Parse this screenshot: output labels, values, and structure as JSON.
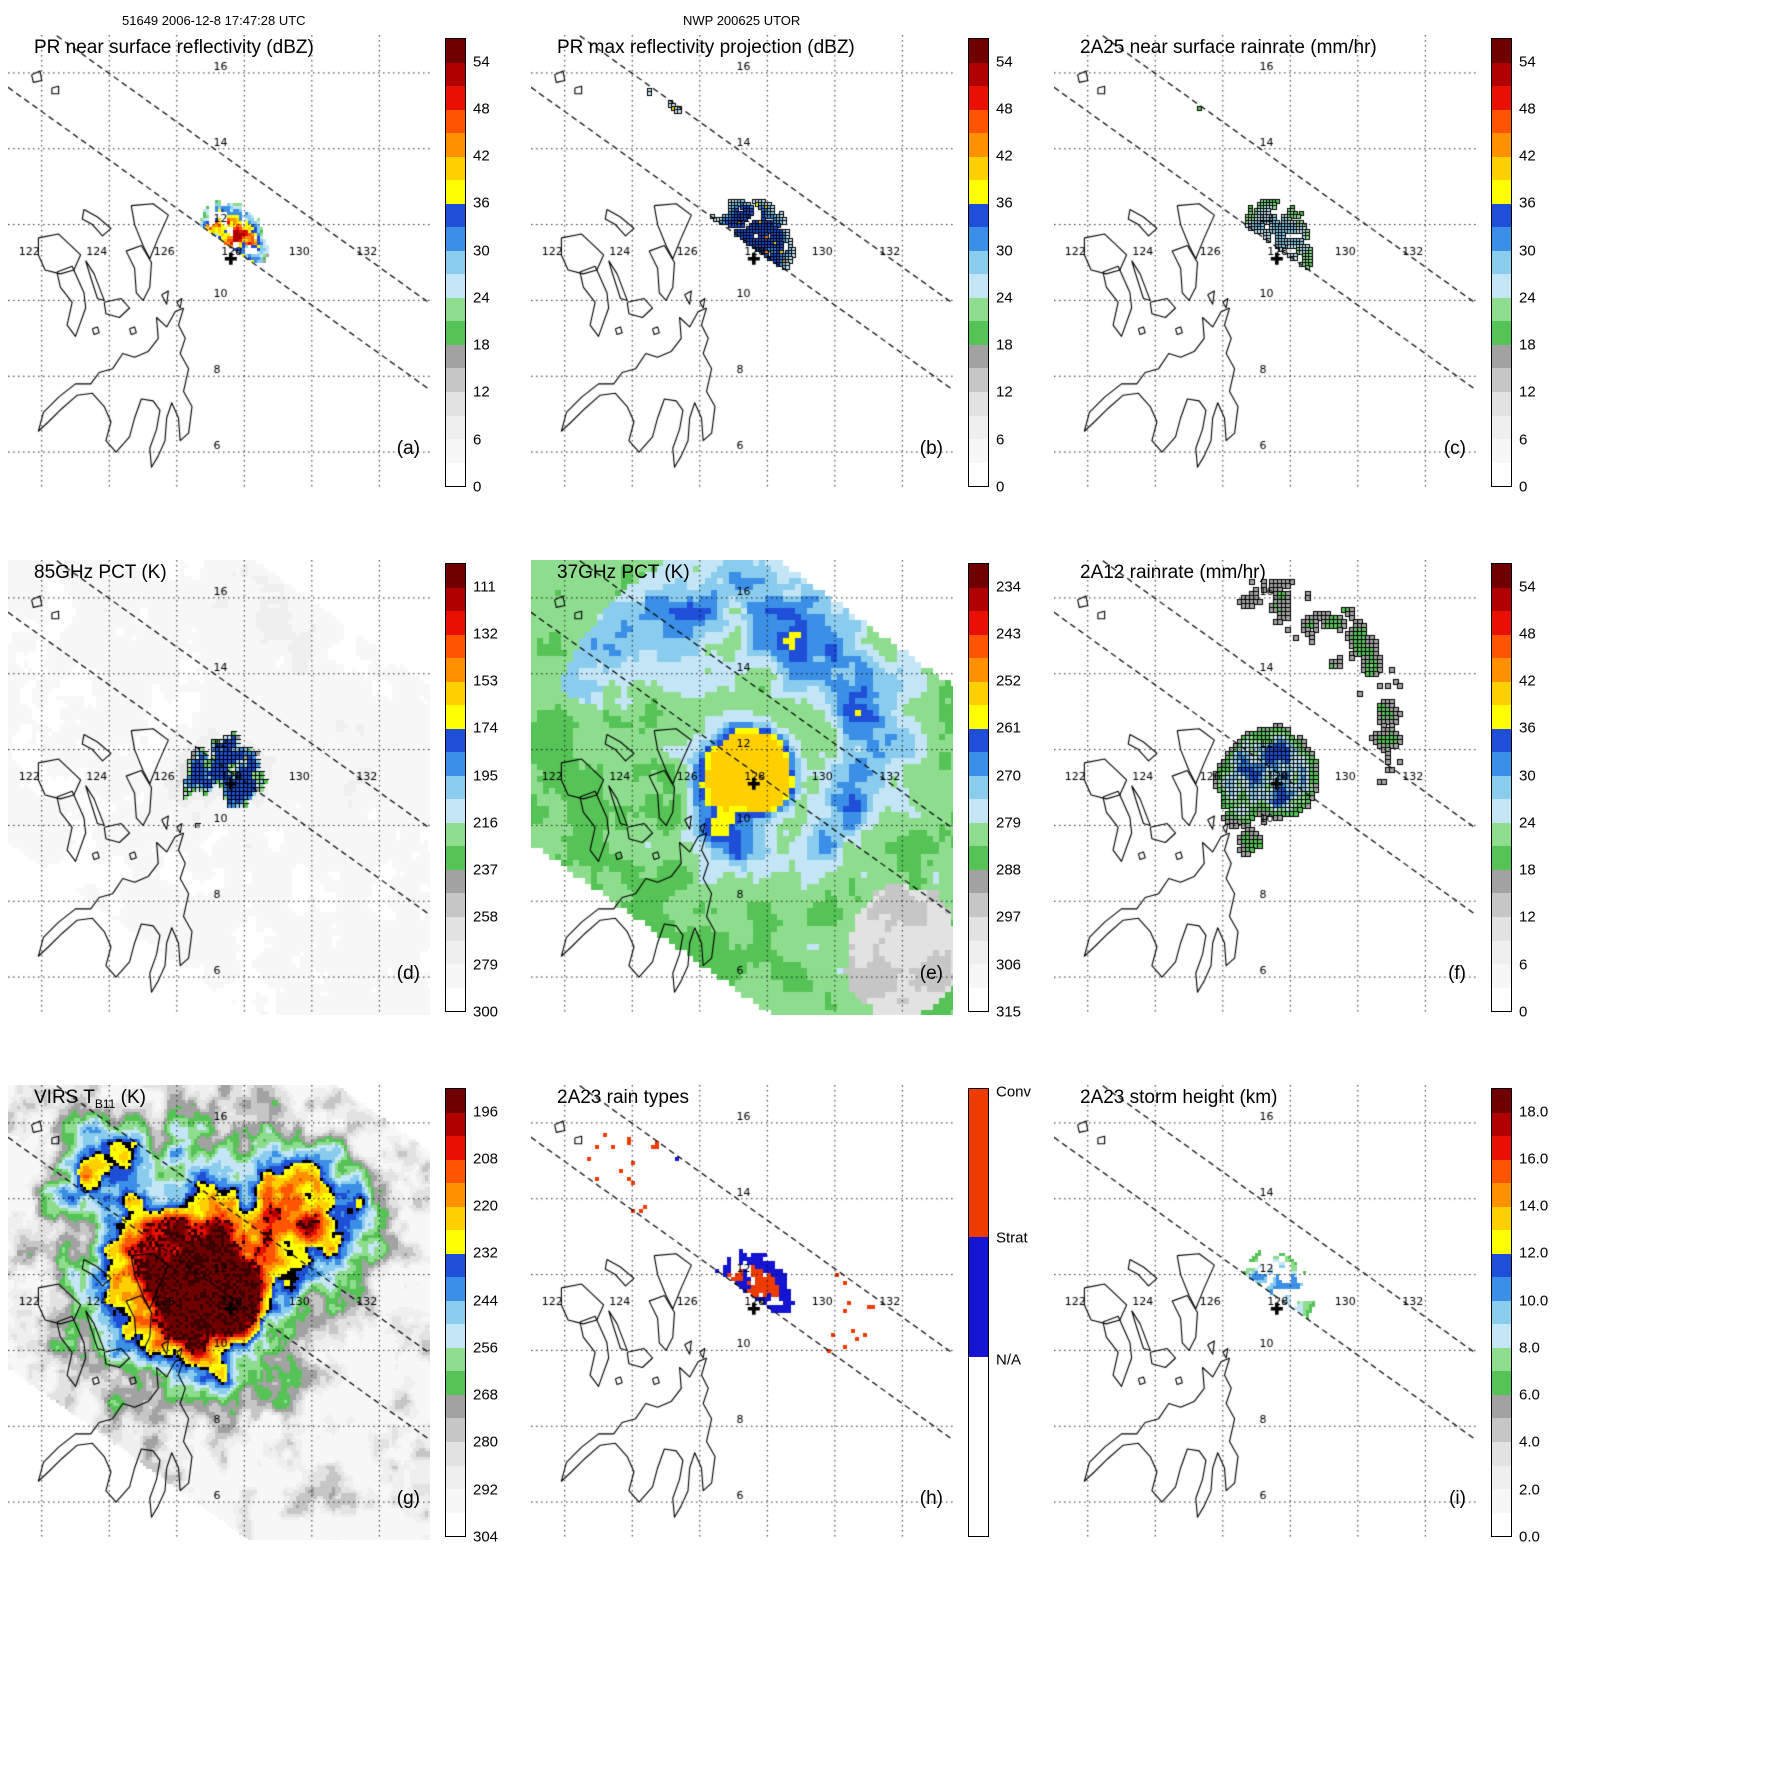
{
  "header": {
    "left": "51649 2006-12-8 17:47:28 UTC",
    "center": "NWP 200625 UTOR"
  },
  "chart_data": {
    "type": "heatmap",
    "layout": "3x3 grid of satellite swath map panels from one TRMM overpass of typhoon NWP 200625 UTOR",
    "axes": {
      "lon_ticks": [
        122,
        124,
        126,
        128,
        130,
        132
      ],
      "lat_ticks": [
        6,
        8,
        10,
        12,
        14,
        16
      ],
      "lon_range": [
        121.0,
        133.5
      ],
      "lat_range": [
        5.0,
        17.0
      ],
      "grid": "dotted"
    },
    "storm_marker": {
      "lon": 127.6,
      "lat": 11.1,
      "symbol": "+"
    },
    "swath": {
      "pr_edges_dashed": true,
      "orientation": "NW-SE descending"
    },
    "palette_19": [
      "#ffffff",
      "#f7f7f7",
      "#efefef",
      "#e2e2e2",
      "#c6c6c6",
      "#a2a2a2",
      "#56c356",
      "#8edd8e",
      "#c3e5f5",
      "#8accee",
      "#3c8fe6",
      "#1f4fd8",
      "#ffff00",
      "#ffd000",
      "#ff9000",
      "#ff5500",
      "#e81000",
      "#b00000",
      "#700000"
    ],
    "rain_type_colors": {
      "conv": "#ee3b00",
      "strat": "#1414d2",
      "na": "#ffffff"
    },
    "panels": [
      {
        "id": "a",
        "letter": "(a)",
        "title": "PR near surface reflectivity (dBZ)",
        "title_sub": "",
        "title_post": "",
        "kind": "pr_z",
        "colorbar": {
          "type": "palette",
          "labels": [
            "54",
            "48",
            "42",
            "36",
            "30",
            "24",
            "18",
            "12",
            "6",
            "0"
          ]
        }
      },
      {
        "id": "b",
        "letter": "(b)",
        "title": "PR max reflectivity projection (dBZ)",
        "title_sub": "",
        "title_post": "",
        "kind": "pr_zmax",
        "colorbar": {
          "type": "palette",
          "labels": [
            "54",
            "48",
            "42",
            "36",
            "30",
            "24",
            "18",
            "12",
            "6",
            "0"
          ]
        }
      },
      {
        "id": "c",
        "letter": "(c)",
        "title": "2A25 near surface rainrate (mm/hr)",
        "title_sub": "",
        "title_post": "",
        "kind": "rr25",
        "colorbar": {
          "type": "palette",
          "labels": [
            "54",
            "48",
            "42",
            "36",
            "30",
            "24",
            "18",
            "12",
            "6",
            "0"
          ]
        }
      },
      {
        "id": "d",
        "letter": "(d)",
        "title": "85GHz PCT (K)",
        "title_sub": "",
        "title_post": "",
        "kind": "pct85",
        "colorbar": {
          "type": "palette",
          "labels": [
            "111",
            "132",
            "153",
            "174",
            "195",
            "216",
            "237",
            "258",
            "279",
            "300"
          ]
        }
      },
      {
        "id": "e",
        "letter": "(e)",
        "title": "37GHz PCT (K)",
        "title_sub": "",
        "title_post": "",
        "kind": "pct37",
        "colorbar": {
          "type": "palette",
          "labels": [
            "234",
            "243",
            "252",
            "261",
            "270",
            "279",
            "288",
            "297",
            "306",
            "315"
          ]
        }
      },
      {
        "id": "f",
        "letter": "(f)",
        "title": "2A12 rainrate (mm/hr)",
        "title_sub": "",
        "title_post": "",
        "kind": "rr12",
        "colorbar": {
          "type": "palette",
          "labels": [
            "54",
            "48",
            "42",
            "36",
            "30",
            "24",
            "18",
            "12",
            "6",
            "0"
          ]
        }
      },
      {
        "id": "g",
        "letter": "(g)",
        "title": "VIRS T",
        "title_sub": "B11",
        "title_post": " (K)",
        "kind": "virs",
        "colorbar": {
          "type": "palette",
          "labels": [
            "196",
            "208",
            "220",
            "232",
            "244",
            "256",
            "268",
            "280",
            "292",
            "304"
          ]
        }
      },
      {
        "id": "h",
        "letter": "(h)",
        "title": "2A23 rain types",
        "title_sub": "",
        "title_post": "",
        "kind": "types",
        "colorbar": {
          "type": "raintype",
          "labels": [
            "Conv",
            "Strat",
            "N/A"
          ],
          "fracs": [
            0.008,
            0.335,
            0.605
          ],
          "segments": [
            {
              "t": 0.0,
              "b": 0.33,
              "color": "#ee3b00"
            },
            {
              "t": 0.33,
              "b": 0.6,
              "color": "#1414d2"
            },
            {
              "t": 0.6,
              "b": 1.0,
              "color": "#ffffff"
            }
          ]
        }
      },
      {
        "id": "i",
        "letter": "(i)",
        "title": "2A23 storm height (km)",
        "title_sub": "",
        "title_post": "",
        "kind": "hgt",
        "colorbar": {
          "type": "palette",
          "labels": [
            "18.0",
            "16.0",
            "14.0",
            "12.0",
            "10.0",
            "8.0",
            "6.0",
            "4.0",
            "2.0",
            "0.0"
          ]
        }
      }
    ],
    "coastlines": [
      [
        [
          126.2,
          9.8
        ],
        [
          126.05,
          9.35
        ],
        [
          126.25,
          9.0
        ],
        [
          126.1,
          8.6
        ],
        [
          126.35,
          8.2
        ],
        [
          126.2,
          7.6
        ],
        [
          126.45,
          7.2
        ],
        [
          126.35,
          6.5
        ],
        [
          126.1,
          6.3
        ],
        [
          126.05,
          6.9
        ],
        [
          125.85,
          7.3
        ],
        [
          125.7,
          6.9
        ],
        [
          125.65,
          6.3
        ],
        [
          125.45,
          5.9
        ],
        [
          125.25,
          5.6
        ],
        [
          125.2,
          6.1
        ],
        [
          125.4,
          6.6
        ],
        [
          125.5,
          7.1
        ],
        [
          125.3,
          7.35
        ],
        [
          124.95,
          7.4
        ],
        [
          124.75,
          6.9
        ],
        [
          124.6,
          6.4
        ],
        [
          124.2,
          6.0
        ],
        [
          123.9,
          6.3
        ],
        [
          124.05,
          6.8
        ],
        [
          123.85,
          7.2
        ],
        [
          123.5,
          7.55
        ],
        [
          123.05,
          7.5
        ],
        [
          122.6,
          7.15
        ],
        [
          122.2,
          6.8
        ],
        [
          121.9,
          6.55
        ],
        [
          122.05,
          7.05
        ],
        [
          122.5,
          7.45
        ],
        [
          123.0,
          7.8
        ],
        [
          123.45,
          7.8
        ],
        [
          123.7,
          8.1
        ],
        [
          124.1,
          8.2
        ],
        [
          124.4,
          8.6
        ],
        [
          124.75,
          8.5
        ],
        [
          125.15,
          8.65
        ],
        [
          125.45,
          9.0
        ],
        [
          125.4,
          9.55
        ],
        [
          125.7,
          9.3
        ],
        [
          125.95,
          9.7
        ],
        [
          126.2,
          9.8
        ]
      ],
      [
        [
          124.95,
          11.45
        ],
        [
          125.25,
          11.0
        ],
        [
          125.2,
          10.35
        ],
        [
          125.0,
          10.0
        ],
        [
          124.8,
          10.2
        ],
        [
          124.75,
          10.85
        ],
        [
          124.5,
          11.3
        ],
        [
          124.95,
          11.45
        ]
      ],
      [
        [
          124.65,
          12.5
        ],
        [
          125.3,
          12.55
        ],
        [
          125.75,
          12.25
        ],
        [
          125.45,
          11.65
        ],
        [
          125.2,
          11.1
        ],
        [
          125.0,
          11.45
        ],
        [
          124.75,
          12.0
        ],
        [
          124.65,
          12.5
        ]
      ],
      [
        [
          123.85,
          9.95
        ],
        [
          124.35,
          10.05
        ],
        [
          124.6,
          9.8
        ],
        [
          124.3,
          9.55
        ],
        [
          123.9,
          9.65
        ],
        [
          123.85,
          9.95
        ]
      ],
      [
        [
          123.3,
          11.05
        ],
        [
          123.55,
          10.7
        ],
        [
          123.85,
          10.0
        ],
        [
          123.65,
          10.05
        ],
        [
          123.4,
          10.75
        ],
        [
          123.3,
          11.05
        ]
      ],
      [
        [
          122.45,
          10.75
        ],
        [
          122.9,
          10.9
        ],
        [
          123.25,
          10.2
        ],
        [
          123.3,
          9.8
        ],
        [
          123.0,
          9.05
        ],
        [
          122.75,
          9.35
        ],
        [
          122.9,
          9.95
        ],
        [
          122.55,
          10.35
        ],
        [
          122.45,
          10.75
        ]
      ],
      [
        [
          121.9,
          11.65
        ],
        [
          122.5,
          11.75
        ],
        [
          122.8,
          11.5
        ],
        [
          123.15,
          11.2
        ],
        [
          122.95,
          10.8
        ],
        [
          122.55,
          10.7
        ],
        [
          122.1,
          10.8
        ],
        [
          121.9,
          11.2
        ],
        [
          121.9,
          11.65
        ]
      ],
      [
        [
          123.25,
          12.4
        ],
        [
          123.65,
          12.2
        ],
        [
          124.05,
          11.9
        ],
        [
          123.8,
          11.7
        ],
        [
          123.5,
          12.0
        ],
        [
          123.2,
          12.15
        ],
        [
          123.25,
          12.4
        ]
      ],
      [
        [
          124.6,
          9.25
        ],
        [
          124.75,
          9.3
        ],
        [
          124.8,
          9.15
        ],
        [
          124.65,
          9.1
        ],
        [
          124.6,
          9.25
        ]
      ],
      [
        [
          123.5,
          9.25
        ],
        [
          123.65,
          9.3
        ],
        [
          123.7,
          9.15
        ],
        [
          123.55,
          9.1
        ],
        [
          123.5,
          9.25
        ]
      ],
      [
        [
          125.55,
          10.15
        ],
        [
          125.75,
          10.25
        ],
        [
          125.7,
          9.9
        ],
        [
          125.55,
          10.15
        ]
      ],
      [
        [
          126.0,
          9.95
        ],
        [
          126.15,
          10.05
        ],
        [
          126.1,
          9.8
        ],
        [
          126.0,
          9.95
        ]
      ],
      [
        [
          121.7,
          15.95
        ],
        [
          121.95,
          16.05
        ],
        [
          122.0,
          15.8
        ],
        [
          121.75,
          15.75
        ],
        [
          121.7,
          15.95
        ]
      ],
      [
        [
          122.3,
          15.6
        ],
        [
          122.5,
          15.65
        ],
        [
          122.5,
          15.45
        ],
        [
          122.3,
          15.45
        ],
        [
          122.3,
          15.6
        ]
      ]
    ]
  }
}
